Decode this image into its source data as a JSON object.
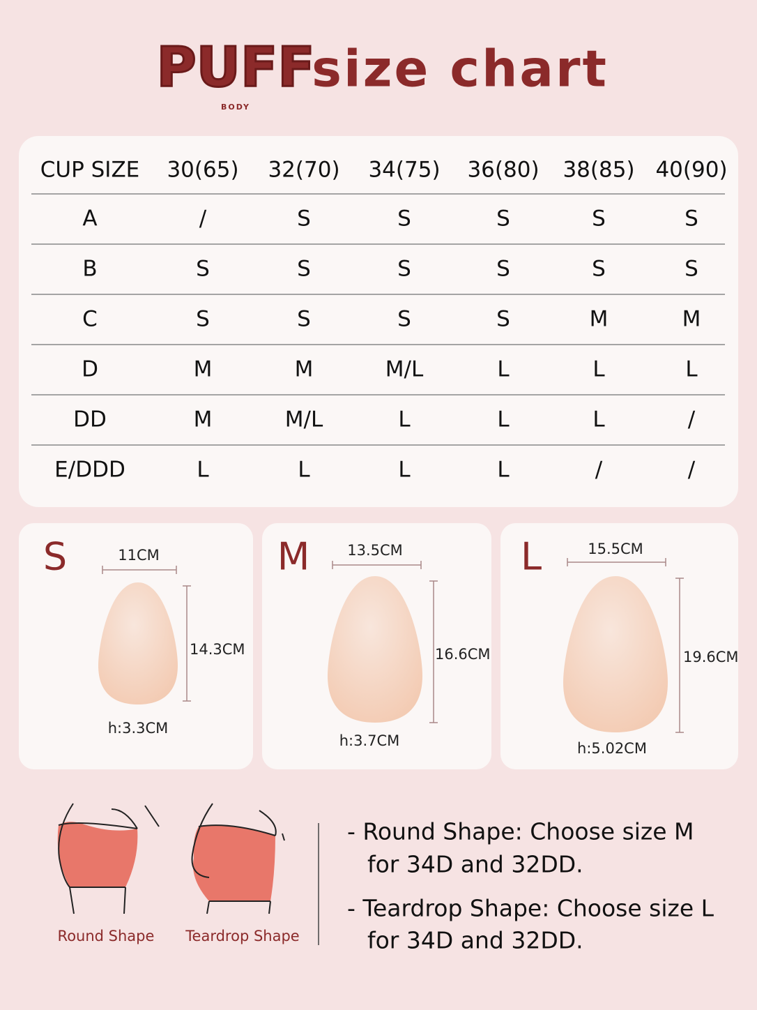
{
  "header": {
    "logo": "PUFF",
    "logo_sub": "BODY",
    "title": "size chart"
  },
  "table": {
    "headers": [
      "CUP SIZE",
      "30(65)",
      "32(70)",
      "34(75)",
      "36(80)",
      "38(85)",
      "40(90)"
    ],
    "rows": [
      [
        "A",
        "/",
        "S",
        "S",
        "S",
        "S",
        "S"
      ],
      [
        "B",
        "S",
        "S",
        "S",
        "S",
        "S",
        "S"
      ],
      [
        "C",
        "S",
        "S",
        "S",
        "S",
        "M",
        "M"
      ],
      [
        "D",
        "M",
        "M",
        "M/L",
        "L",
        "L",
        "L"
      ],
      [
        "DD",
        "M",
        "M/L",
        "L",
        "L",
        "L",
        "/"
      ],
      [
        "E/DDD",
        "L",
        "L",
        "L",
        "L",
        "/",
        "/"
      ]
    ]
  },
  "sizes": [
    {
      "letter": "S",
      "width": "11CM",
      "height": "14.3CM",
      "thickness": "h:3.3CM"
    },
    {
      "letter": "M",
      "width": "13.5CM",
      "height": "16.6CM",
      "thickness": "h:3.7CM"
    },
    {
      "letter": "L",
      "width": "15.5CM",
      "height": "19.6CM",
      "thickness": "h:5.02CM"
    }
  ],
  "shapes": [
    {
      "label": "Round Shape"
    },
    {
      "label": "Teardrop Shape"
    }
  ],
  "notes": [
    [
      "- Round Shape: Choose size M",
      "for 34D and 32DD."
    ],
    [
      "- Teardrop Shape: Choose size L",
      "for 34D and 32DD."
    ]
  ]
}
